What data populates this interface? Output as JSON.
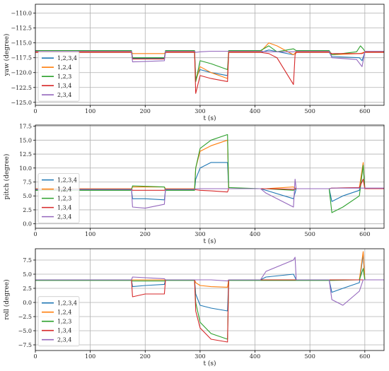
{
  "colors": {
    "1,2,3,4": "#1f77b4",
    "1,2,4": "#ff7f0e",
    "1,2,3": "#2ca02c",
    "1,3,4": "#d62728",
    "2,3,4": "#9467bd"
  },
  "chart_data": [
    {
      "type": "line",
      "title": "",
      "xlabel": "t (s)",
      "ylabel": "yaw (degree)",
      "xlim": [
        0,
        635
      ],
      "ylim": [
        -125.5,
        -108.5
      ],
      "xticks": [
        0,
        100,
        200,
        300,
        400,
        500,
        600
      ],
      "yticks": [
        -110.0,
        -112.5,
        -115.0,
        -117.5,
        -120.0,
        -122.5,
        -125.0
      ],
      "ytick_labels": [
        "−110.0",
        "−112.5",
        "−115.0",
        "−117.5",
        "−120.0",
        "−122.5",
        "−125.0"
      ],
      "grid": true,
      "legend": "left",
      "series": [
        {
          "name": "1,2,3,4",
          "x": [
            0,
            175,
            177,
            235,
            237,
            290,
            292,
            300,
            320,
            350,
            352,
            410,
            425,
            470,
            475,
            480,
            535,
            540,
            590,
            595,
            600,
            635
          ],
          "y": [
            -116.6,
            -116.6,
            -117.6,
            -117.6,
            -116.6,
            -116.6,
            -121.0,
            -119.5,
            -120.0,
            -120.5,
            -116.6,
            -116.6,
            -116.2,
            -117.0,
            -116.6,
            -116.6,
            -116.6,
            -117.3,
            -117.5,
            -118.0,
            -116.6,
            -116.6
          ]
        },
        {
          "name": "1,2,4",
          "x": [
            0,
            175,
            177,
            235,
            237,
            290,
            292,
            300,
            320,
            350,
            352,
            410,
            425,
            440,
            470,
            475,
            480,
            535,
            540,
            590,
            595,
            600,
            635
          ],
          "y": [
            -116.5,
            -116.5,
            -116.8,
            -116.8,
            -116.5,
            -116.5,
            -121.5,
            -119.0,
            -120.0,
            -121.0,
            -116.5,
            -116.5,
            -115.0,
            -115.5,
            -117.0,
            -116.5,
            -116.5,
            -116.5,
            -117.0,
            -116.8,
            -116.7,
            -116.5,
            -116.5
          ]
        },
        {
          "name": "1,2,3",
          "x": [
            0,
            175,
            177,
            235,
            237,
            290,
            292,
            300,
            320,
            350,
            352,
            410,
            425,
            440,
            470,
            475,
            480,
            535,
            540,
            585,
            592,
            597,
            600,
            635
          ],
          "y": [
            -116.3,
            -116.3,
            -117.5,
            -117.5,
            -116.3,
            -116.3,
            -121.5,
            -118.0,
            -118.5,
            -119.5,
            -116.3,
            -116.3,
            -115.5,
            -116.5,
            -116.0,
            -116.3,
            -116.3,
            -116.3,
            -117.0,
            -116.5,
            -115.5,
            -116.0,
            -116.4,
            -116.4
          ]
        },
        {
          "name": "1,3,4",
          "x": [
            0,
            175,
            177,
            235,
            237,
            290,
            292,
            300,
            320,
            350,
            352,
            410,
            425,
            440,
            470,
            473,
            475,
            480,
            535,
            540,
            590,
            595,
            600,
            635
          ],
          "y": [
            -116.6,
            -116.6,
            -117.7,
            -117.7,
            -116.6,
            -116.6,
            -123.5,
            -120.5,
            -121.0,
            -121.5,
            -116.6,
            -116.6,
            -116.8,
            -117.5,
            -122.0,
            -117.0,
            -116.6,
            -116.6,
            -116.6,
            -116.8,
            -116.8,
            -116.8,
            -116.6,
            -116.6
          ]
        },
        {
          "name": "2,3,4",
          "x": [
            0,
            175,
            177,
            235,
            237,
            290,
            292,
            300,
            320,
            350,
            352,
            410,
            425,
            470,
            475,
            480,
            535,
            540,
            585,
            595,
            597,
            600,
            635
          ],
          "y": [
            -116.4,
            -116.4,
            -118.2,
            -118.0,
            -116.4,
            -116.4,
            -116.6,
            -116.5,
            -116.4,
            -116.4,
            -116.4,
            -116.4,
            -116.5,
            -116.5,
            -116.4,
            -116.4,
            -116.4,
            -117.5,
            -117.8,
            -119.0,
            -118.0,
            -116.4,
            -116.4
          ]
        }
      ]
    },
    {
      "type": "line",
      "title": "",
      "xlabel": "t (s)",
      "ylabel": "pitch (degree)",
      "xlim": [
        0,
        635
      ],
      "ylim": [
        -0.8,
        17.7
      ],
      "xticks": [
        0,
        100,
        200,
        300,
        400,
        500,
        600
      ],
      "yticks": [
        0.0,
        2.5,
        5.0,
        7.5,
        10.0,
        12.5,
        15.0,
        17.5
      ],
      "ytick_labels": [
        "0.0",
        "2.5",
        "5.0",
        "7.5",
        "10.0",
        "12.5",
        "15.0",
        "17.5"
      ],
      "grid": true,
      "legend": "left",
      "series": [
        {
          "name": "1,2,3,4",
          "x": [
            0,
            175,
            177,
            200,
            235,
            237,
            290,
            292,
            300,
            320,
            350,
            352,
            410,
            420,
            470,
            475,
            480,
            535,
            540,
            560,
            590,
            597,
            600,
            635
          ],
          "y": [
            6.1,
            6.1,
            4.5,
            4.5,
            4.3,
            6.1,
            6.1,
            8.0,
            10.0,
            11.0,
            11.0,
            6.3,
            6.3,
            6.0,
            4.5,
            6.3,
            6.3,
            6.3,
            4.0,
            5.0,
            6.0,
            10.5,
            6.3,
            6.3
          ]
        },
        {
          "name": "1,2,4",
          "x": [
            0,
            175,
            177,
            235,
            237,
            290,
            292,
            300,
            320,
            350,
            352,
            410,
            420,
            470,
            475,
            480,
            535,
            540,
            590,
            597,
            600,
            635
          ],
          "y": [
            6.3,
            6.3,
            6.6,
            6.6,
            6.3,
            6.3,
            10.0,
            13.0,
            14.0,
            15.0,
            6.3,
            6.3,
            6.3,
            6.6,
            6.3,
            6.3,
            6.3,
            6.4,
            6.5,
            11.0,
            6.3,
            6.3
          ]
        },
        {
          "name": "1,2,3",
          "x": [
            0,
            175,
            177,
            235,
            237,
            290,
            292,
            300,
            320,
            350,
            352,
            410,
            420,
            470,
            475,
            480,
            535,
            540,
            560,
            590,
            597,
            600,
            635
          ],
          "y": [
            6.0,
            6.0,
            6.8,
            6.6,
            6.0,
            6.0,
            10.0,
            13.5,
            15.0,
            16.0,
            6.5,
            6.3,
            6.3,
            6.0,
            6.3,
            6.3,
            6.3,
            2.0,
            3.0,
            5.0,
            10.5,
            6.3,
            6.3
          ]
        },
        {
          "name": "1,3,4",
          "x": [
            0,
            175,
            177,
            235,
            237,
            290,
            292,
            300,
            320,
            350,
            352,
            410,
            420,
            470,
            475,
            480,
            535,
            540,
            590,
            597,
            600,
            635
          ],
          "y": [
            6.2,
            6.2,
            6.0,
            6.0,
            6.2,
            6.2,
            6.1,
            6.0,
            5.9,
            5.7,
            6.3,
            6.3,
            6.3,
            6.2,
            6.3,
            6.3,
            6.3,
            6.4,
            6.5,
            8.0,
            6.3,
            6.3
          ]
        },
        {
          "name": "2,3,4",
          "x": [
            0,
            175,
            177,
            200,
            235,
            237,
            290,
            292,
            300,
            320,
            350,
            352,
            410,
            420,
            470,
            473,
            475,
            480,
            535,
            540,
            590,
            597,
            600,
            635
          ],
          "y": [
            6.2,
            6.2,
            3.0,
            2.8,
            3.5,
            6.2,
            6.2,
            6.3,
            6.3,
            6.3,
            6.3,
            6.3,
            6.3,
            5.5,
            3.0,
            8.0,
            6.3,
            6.3,
            6.3,
            6.4,
            6.4,
            6.4,
            6.4,
            6.4
          ]
        }
      ]
    },
    {
      "type": "line",
      "title": "",
      "xlabel": "t (s)",
      "ylabel": "roll (degree)",
      "xlim": [
        0,
        635
      ],
      "ylim": [
        -8.5,
        9.5
      ],
      "xticks": [
        0,
        100,
        200,
        300,
        400,
        500,
        600
      ],
      "yticks": [
        -7.5,
        -5.0,
        -2.5,
        0.0,
        2.5,
        5.0,
        7.5
      ],
      "ytick_labels": [
        "−7.5",
        "−5.0",
        "−2.5",
        "0.0",
        "2.5",
        "5.0",
        "7.5"
      ],
      "grid": true,
      "legend": "left",
      "series": [
        {
          "name": "1,2,3,4",
          "x": [
            0,
            175,
            177,
            200,
            235,
            237,
            290,
            292,
            300,
            320,
            350,
            352,
            410,
            420,
            470,
            475,
            480,
            535,
            540,
            560,
            590,
            597,
            600,
            635
          ],
          "y": [
            4.0,
            4.0,
            2.8,
            3.0,
            3.2,
            4.0,
            4.0,
            1.5,
            -0.5,
            -1.0,
            -1.5,
            4.0,
            4.0,
            4.5,
            5.0,
            4.0,
            4.0,
            4.0,
            1.8,
            2.5,
            3.5,
            8.5,
            4.0,
            4.0
          ]
        },
        {
          "name": "1,2,4",
          "x": [
            0,
            175,
            177,
            235,
            237,
            290,
            292,
            300,
            320,
            350,
            352,
            410,
            420,
            470,
            475,
            480,
            535,
            540,
            590,
            597,
            600,
            635
          ],
          "y": [
            4.0,
            4.0,
            4.0,
            4.0,
            4.0,
            4.0,
            3.5,
            3.0,
            2.8,
            2.7,
            4.0,
            4.0,
            4.0,
            4.0,
            4.0,
            4.0,
            4.0,
            4.0,
            4.0,
            9.0,
            4.0,
            4.0
          ]
        },
        {
          "name": "1,2,3",
          "x": [
            0,
            175,
            177,
            235,
            237,
            290,
            292,
            300,
            320,
            350,
            352,
            410,
            420,
            470,
            475,
            480,
            535,
            540,
            590,
            597,
            600,
            635
          ],
          "y": [
            3.9,
            3.9,
            3.8,
            3.8,
            3.9,
            3.9,
            0.0,
            -3.5,
            -5.5,
            -6.5,
            3.9,
            3.9,
            3.9,
            3.9,
            3.9,
            3.9,
            3.9,
            3.9,
            4.0,
            6.0,
            4.0,
            4.0
          ]
        },
        {
          "name": "1,3,4",
          "x": [
            0,
            175,
            177,
            200,
            235,
            237,
            290,
            292,
            300,
            320,
            350,
            352,
            410,
            420,
            470,
            475,
            480,
            535,
            540,
            590,
            597,
            600,
            635
          ],
          "y": [
            4.0,
            4.0,
            1.0,
            1.5,
            1.5,
            4.0,
            4.0,
            -1.5,
            -4.5,
            -6.5,
            -7.0,
            4.0,
            4.0,
            4.0,
            4.0,
            4.0,
            4.0,
            4.0,
            4.0,
            4.0,
            4.0,
            4.0,
            4.0
          ]
        },
        {
          "name": "2,3,4",
          "x": [
            0,
            175,
            177,
            235,
            237,
            290,
            292,
            300,
            320,
            350,
            352,
            410,
            420,
            470,
            473,
            475,
            480,
            535,
            540,
            560,
            590,
            597,
            600,
            635
          ],
          "y": [
            4.0,
            4.0,
            4.5,
            4.2,
            4.0,
            4.0,
            4.0,
            4.0,
            4.0,
            3.8,
            4.0,
            4.0,
            5.5,
            7.5,
            8.0,
            4.0,
            4.0,
            4.0,
            0.5,
            -0.5,
            2.0,
            4.0,
            4.0,
            4.0
          ]
        }
      ]
    }
  ]
}
